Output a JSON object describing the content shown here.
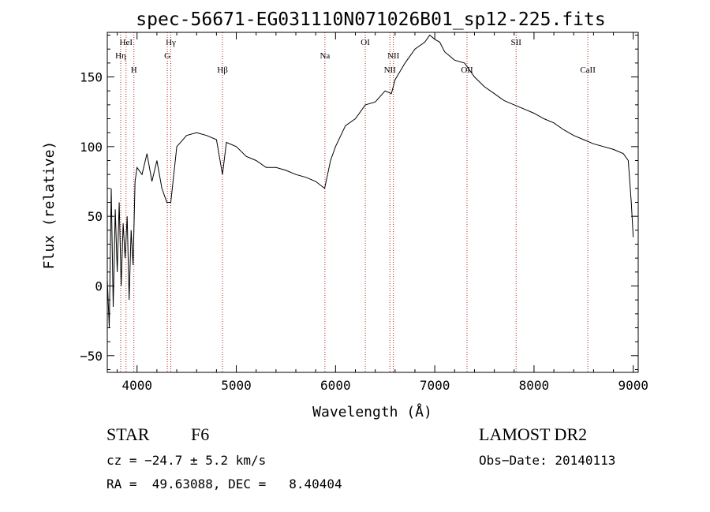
{
  "chart_data": {
    "type": "line",
    "title": "spec-56671-EG031110N071026B01_sp12-225.fits",
    "xlabel": "Wavelength (Å)",
    "ylabel": "Flux (relative)",
    "xlim": [
      3700,
      9050
    ],
    "ylim": [
      -62,
      182
    ],
    "xticks": [
      4000,
      5000,
      6000,
      7000,
      8000,
      9000
    ],
    "yticks": [
      -50,
      0,
      50,
      100,
      150
    ],
    "grid": false,
    "line_color": "#000000",
    "marker_color": "#b22222",
    "series": [
      {
        "x": [
          3700,
          3720,
          3740,
          3760,
          3780,
          3800,
          3820,
          3840,
          3860,
          3880,
          3900,
          3920,
          3940,
          3960,
          3980,
          4000,
          4050,
          4100,
          4150,
          4200,
          4250,
          4300,
          4340,
          4400,
          4500,
          4600,
          4700,
          4800,
          4861,
          4900,
          5000,
          5100,
          5200,
          5300,
          5400,
          5500,
          5600,
          5700,
          5800,
          5890,
          5950,
          6000,
          6100,
          6200,
          6300,
          6400,
          6500,
          6563,
          6600,
          6700,
          6800,
          6900,
          6950,
          7000,
          7050,
          7100,
          7200,
          7300,
          7400,
          7500,
          7600,
          7700,
          7800,
          7900,
          8000,
          8100,
          8200,
          8300,
          8400,
          8500,
          8600,
          8700,
          8800,
          8900,
          8950,
          8980,
          9000
        ],
        "y": [
          5,
          -30,
          70,
          -15,
          55,
          10,
          60,
          0,
          45,
          20,
          50,
          -10,
          40,
          15,
          75,
          85,
          80,
          95,
          75,
          90,
          70,
          60,
          60,
          100,
          108,
          110,
          108,
          105,
          80,
          103,
          100,
          93,
          90,
          85,
          85,
          83,
          80,
          78,
          75,
          70,
          90,
          100,
          115,
          120,
          130,
          132,
          140,
          138,
          148,
          160,
          170,
          175,
          180,
          177,
          175,
          168,
          162,
          160,
          150,
          143,
          138,
          133,
          130,
          127,
          124,
          120,
          117,
          112,
          108,
          105,
          102,
          100,
          98,
          95,
          90,
          60,
          35
        ]
      }
    ],
    "lines": [
      {
        "name": "Hη",
        "x": 3835
      },
      {
        "name": "HeI",
        "x": 3889
      },
      {
        "name": "H",
        "x": 3968
      },
      {
        "name": "Hγ",
        "x": 4340
      },
      {
        "name": "G",
        "x": 4305
      },
      {
        "name": "Hβ",
        "x": 4861
      },
      {
        "name": "Na",
        "x": 5893
      },
      {
        "name": "OI",
        "x": 6300
      },
      {
        "name": "NII",
        "x": 6548
      },
      {
        "name": "NII",
        "x": 6583
      },
      {
        "name": "OII",
        "x": 7325
      },
      {
        "name": "SII",
        "x": 7820
      },
      {
        "name": "CaII",
        "x": 8542
      }
    ]
  },
  "info": {
    "class_label": "STAR",
    "subclass": "F6",
    "survey": "LAMOST DR2",
    "cz": "cz = −24.7 ± 5.2 km/s",
    "obs_date": "Obs−Date: 20140113",
    "coords": "RA =  49.63088, DEC =   8.40404"
  }
}
